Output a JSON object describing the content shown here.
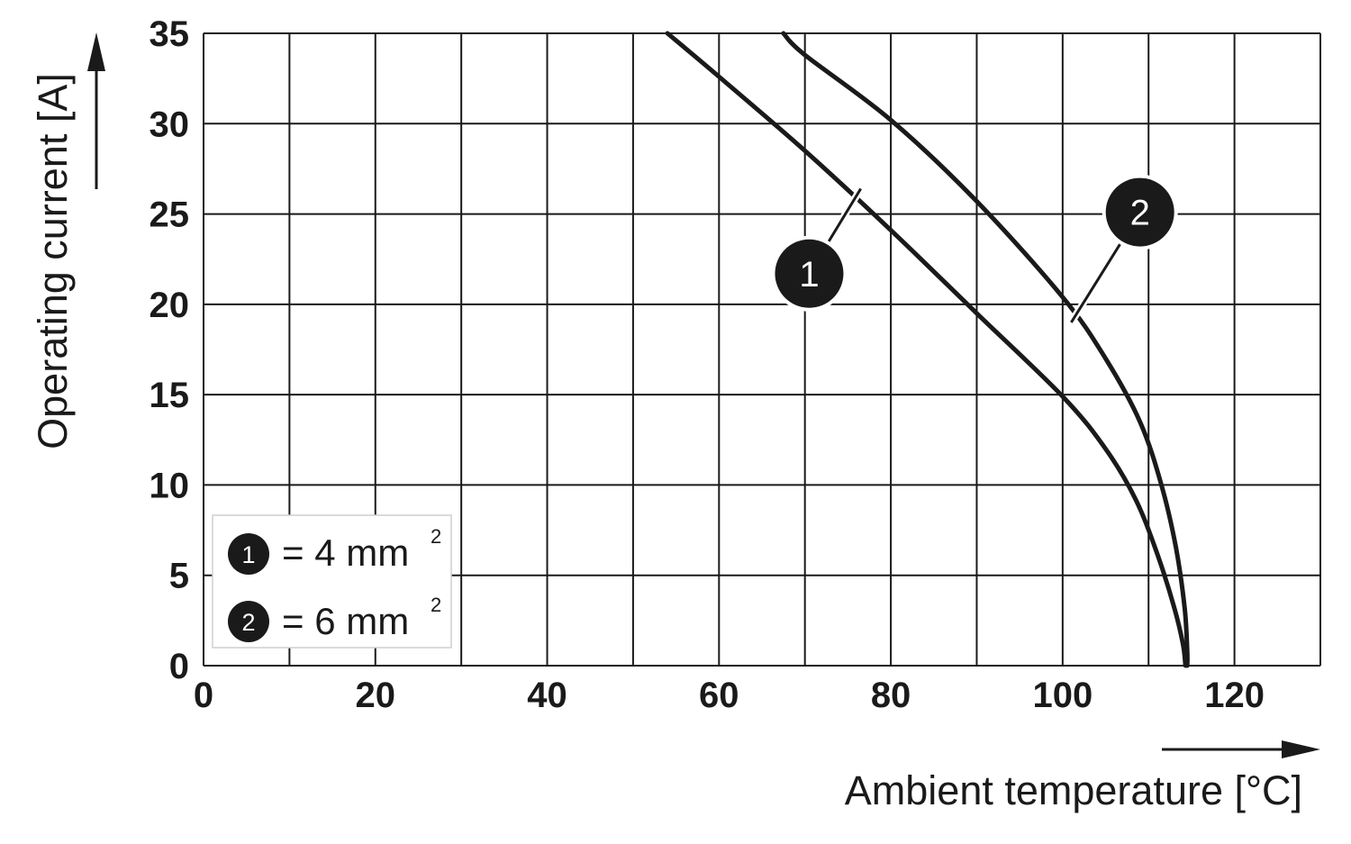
{
  "chart_data": {
    "type": "line",
    "title": "",
    "xlabel": "Ambient temperature [°C]",
    "ylabel": "Operating current [A]",
    "xlim": [
      0,
      130
    ],
    "ylim": [
      0,
      35
    ],
    "x_ticks": [
      0,
      20,
      40,
      60,
      80,
      100,
      120
    ],
    "y_ticks": [
      0,
      5,
      10,
      15,
      20,
      25,
      30,
      35
    ],
    "grid": true,
    "grid_x_step": 10,
    "grid_y_step": 5,
    "legend_position": "bottom-left",
    "series": [
      {
        "name": "1",
        "label": "= 4 mm",
        "superscript": "2",
        "color": "#1a1a1a",
        "points": [
          [
            54,
            35
          ],
          [
            60,
            32.6
          ],
          [
            70,
            28.5
          ],
          [
            80,
            24.1
          ],
          [
            90,
            19.5
          ],
          [
            100,
            14.9
          ],
          [
            105,
            12.0
          ],
          [
            108.5,
            9.2
          ],
          [
            111,
            6.2
          ],
          [
            113,
            3.2
          ],
          [
            114,
            1.2
          ],
          [
            114.3,
            0
          ]
        ]
      },
      {
        "name": "2",
        "label": "= 6 mm",
        "superscript": "2",
        "color": "#1a1a1a",
        "points": [
          [
            67.5,
            35
          ],
          [
            70,
            33.8
          ],
          [
            80,
            30.2
          ],
          [
            90,
            25.7
          ],
          [
            100,
            20.4
          ],
          [
            105,
            17.0
          ],
          [
            109,
            13.5
          ],
          [
            111.5,
            10.0
          ],
          [
            113.2,
            6.5
          ],
          [
            114.2,
            3.2
          ],
          [
            114.5,
            0.8
          ],
          [
            114.5,
            0
          ]
        ]
      }
    ]
  }
}
